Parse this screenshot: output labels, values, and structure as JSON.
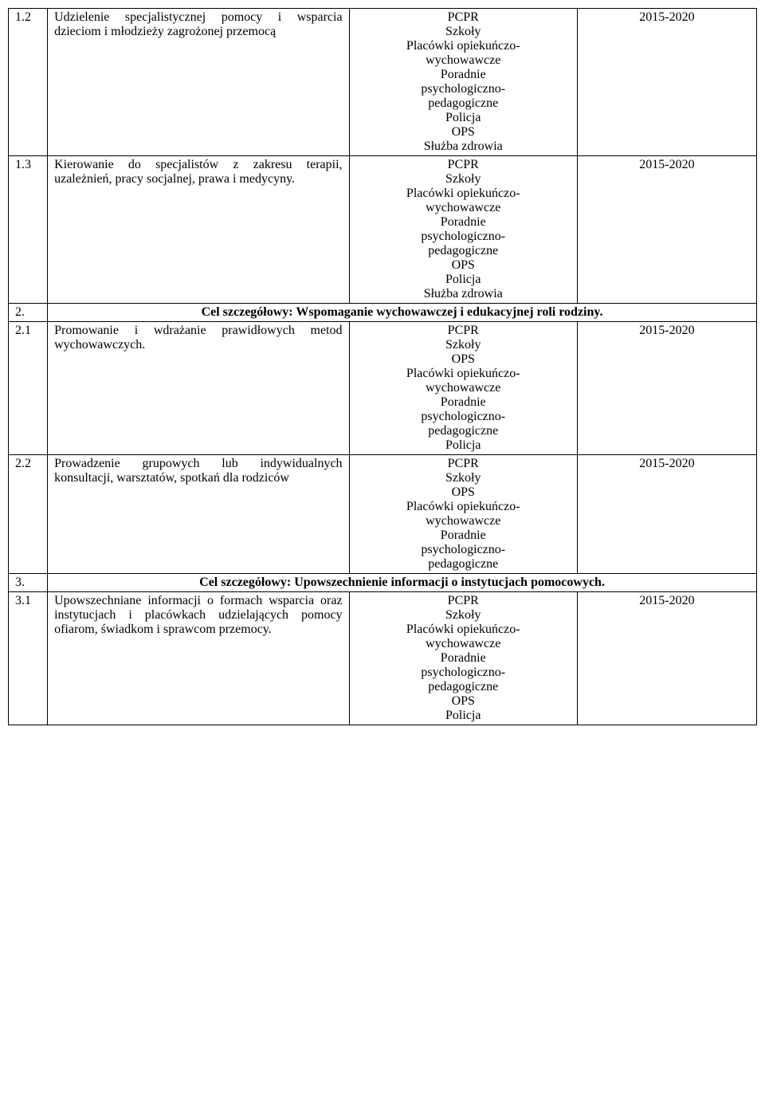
{
  "rows": [
    {
      "num": "1.2",
      "desc": "Udzielenie specjalistycznej pomocy i wsparcia dzieciom i młodzieży zagrożonej przemocą",
      "institutions": [
        "PCPR",
        "Szkoły",
        "Placówki opiekuńczo-",
        "wychowawcze",
        "Poradnie",
        "psychologiczno-",
        "pedagogiczne",
        "Policja",
        "OPS",
        "Służba zdrowia"
      ],
      "year": "2015-2020"
    },
    {
      "num": "1.3",
      "desc": "Kierowanie do specjalistów z zakresu terapii, uzależnień, pracy socjalnej, prawa i medycyny.",
      "institutions": [
        "PCPR",
        "Szkoły",
        "Placówki opiekuńczo-",
        "wychowawcze",
        "Poradnie",
        "psychologiczno-",
        "pedagogiczne",
        "OPS",
        "Policja",
        "Służba zdrowia"
      ],
      "year": "2015-2020"
    },
    {
      "type": "goal",
      "num": "2.",
      "text": "Cel szczegółowy: Wspomaganie wychowawczej i edukacyjnej roli rodziny."
    },
    {
      "num": "2.1",
      "desc": "Promowanie i wdrażanie prawidłowych metod wychowawczych.",
      "institutions": [
        "PCPR",
        "Szkoły",
        "OPS",
        "Placówki opiekuńczo-",
        "wychowawcze",
        "Poradnie",
        "psychologiczno-",
        "pedagogiczne",
        "Policja"
      ],
      "year": "2015-2020"
    },
    {
      "num": "2.2",
      "desc": "Prowadzenie grupowych lub indywidualnych konsultacji, warsztatów, spotkań dla rodziców",
      "institutions": [
        "PCPR",
        "Szkoły",
        "OPS",
        "Placówki opiekuńczo-",
        "wychowawcze",
        "Poradnie",
        "psychologiczno-",
        "pedagogiczne"
      ],
      "year": "2015-2020"
    },
    {
      "type": "goal",
      "num": "3.",
      "text": "Cel szczegółowy: Upowszechnienie informacji o instytucjach pomocowych."
    },
    {
      "num": "3.1",
      "desc": "Upowszechniane informacji o formach wsparcia oraz instytucjach i placówkach udzielających pomocy ofiarom, świadkom i sprawcom przemocy.",
      "institutions": [
        "PCPR",
        "Szkoły",
        "Placówki opiekuńczo-",
        "wychowawcze",
        "Poradnie",
        "psychologiczno-",
        "pedagogiczne",
        "OPS",
        "Policja"
      ],
      "year": "2015-2020"
    }
  ]
}
